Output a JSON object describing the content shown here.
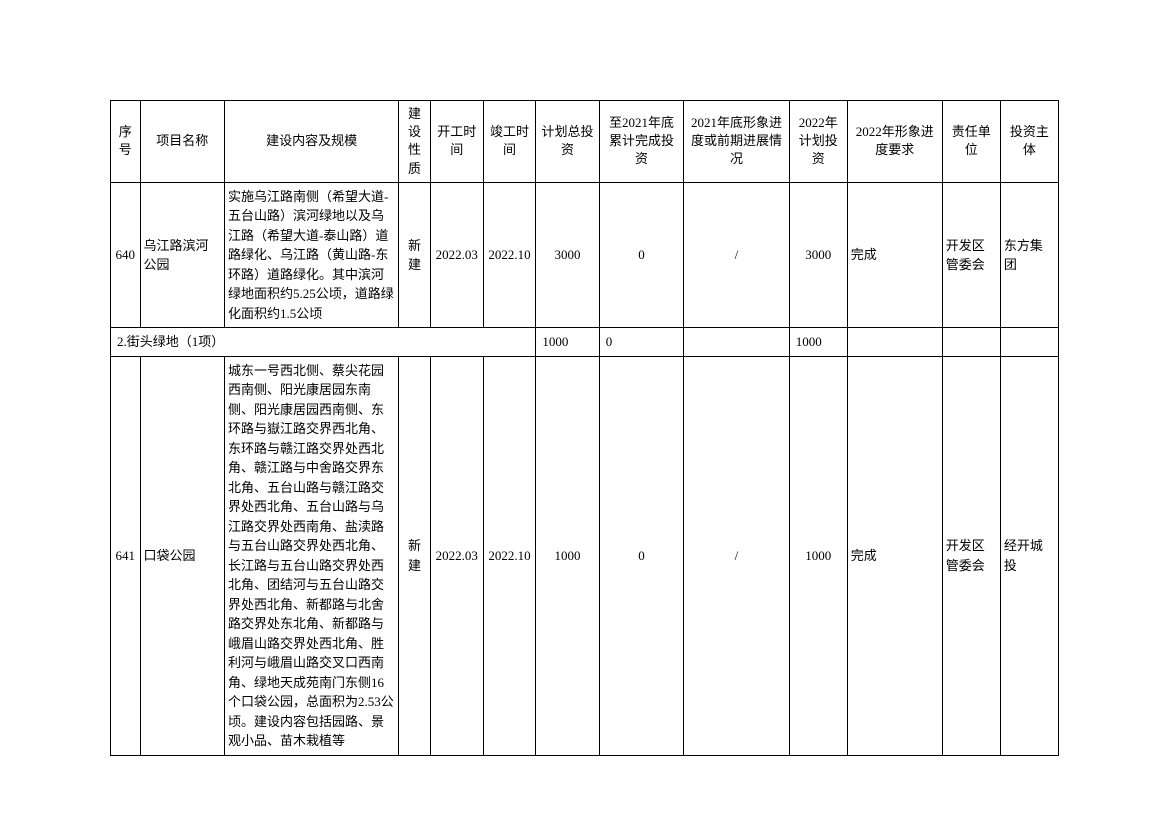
{
  "headers": {
    "seq": "序号",
    "name": "项目名称",
    "content": "建设内容及规模",
    "nature": "建设性质",
    "start": "开工时间",
    "end": "竣工时间",
    "total": "计划总投资",
    "done": "至2021年底累计完成投资",
    "progress2021": "2021年底形象进度或前期进展情况",
    "plan2022": "2022年计划投资",
    "req2022": "2022年形象进度要求",
    "unit": "责任单位",
    "investor": "投资主体"
  },
  "rows": [
    {
      "seq": "640",
      "name": "乌江路滨河公园",
      "content": "实施乌江路南侧（希望大道-五台山路）滨河绿地以及乌江路（希望大道-泰山路）道路绿化、乌江路（黄山路-东环路）道路绿化。其中滨河绿地面积约5.25公顷，道路绿化面积约1.5公顷",
      "nature": "新建",
      "start": "2022.03",
      "end": "2022.10",
      "total": "3000",
      "done": "0",
      "progress2021": "/",
      "plan2022": "3000",
      "req2022": "完成",
      "unit": "开发区管委会",
      "investor": "东方集团"
    }
  ],
  "section": {
    "label": "2.街头绿地（1项）",
    "total": "1000",
    "done": "0",
    "plan2022": "1000"
  },
  "rows2": [
    {
      "seq": "641",
      "name": "口袋公园",
      "content": "城东一号西北侧、蔡尖花园西南侧、阳光康居园东南侧、阳光康居园西南侧、东环路与嶽江路交界西北角、东环路与赣江路交界处西北角、赣江路与中舍路交界东北角、五台山路与赣江路交界处西北角、五台山路与乌江路交界处西南角、盐渎路与五台山路交界处西北角、长江路与五台山路交界处西北角、团结河与五台山路交界处西北角、新都路与北舍路交界处东北角、新都路与峨眉山路交界处西北角、胜利河与峨眉山路交叉口西南角、绿地天成苑南门东侧16个口袋公园，总面积为2.53公顷。建设内容包括园路、景观小品、苗木栽植等",
      "nature": "新建",
      "start": "2022.03",
      "end": "2022.10",
      "total": "1000",
      "done": "0",
      "progress2021": "/",
      "plan2022": "1000",
      "req2022": "完成",
      "unit": "开发区管委会",
      "investor": "经开城投"
    }
  ],
  "style": {
    "font_family": "SimSun",
    "font_size": 13,
    "border_color": "#000000",
    "background_color": "#ffffff",
    "text_color": "#000000"
  }
}
